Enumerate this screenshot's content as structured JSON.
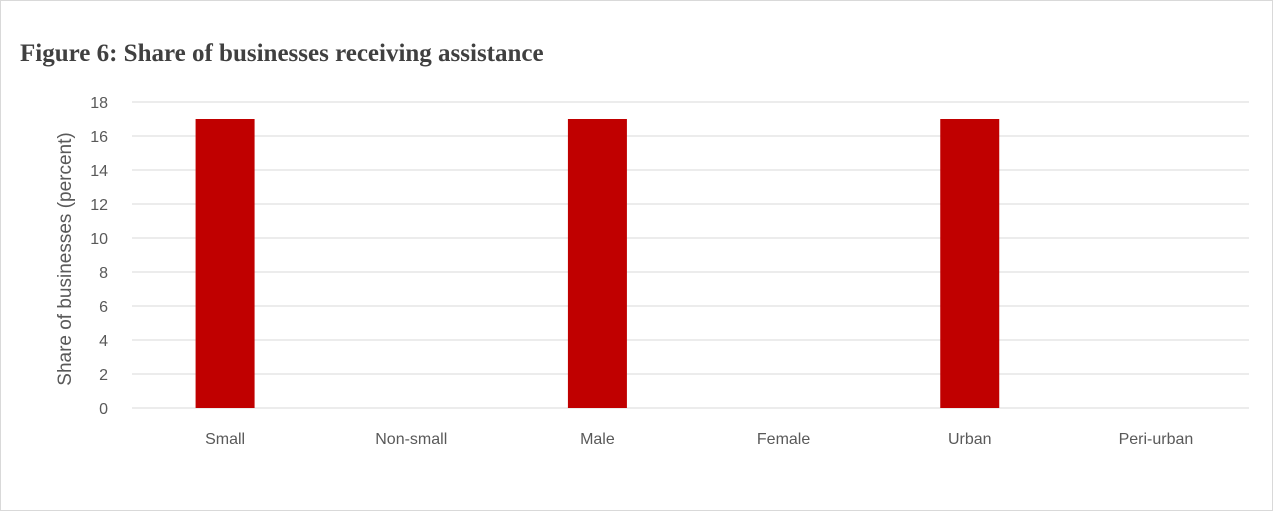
{
  "chart_data": {
    "type": "bar",
    "title": "Figure 6: Share of businesses receiving assistance",
    "xlabel": "",
    "ylabel": "Share of businesses (percent)",
    "categories": [
      "Small",
      "Non-small",
      "Male",
      "Female",
      "Urban",
      "Peri-urban"
    ],
    "values": [
      17,
      0,
      17,
      0,
      17,
      0
    ],
    "ylim": [
      0,
      18
    ],
    "yticks": [
      0,
      2,
      4,
      6,
      8,
      10,
      12,
      14,
      16,
      18
    ],
    "grid": true,
    "legend": "none",
    "bar_color": "#c00000",
    "grid_color": "#d9d9d9"
  }
}
